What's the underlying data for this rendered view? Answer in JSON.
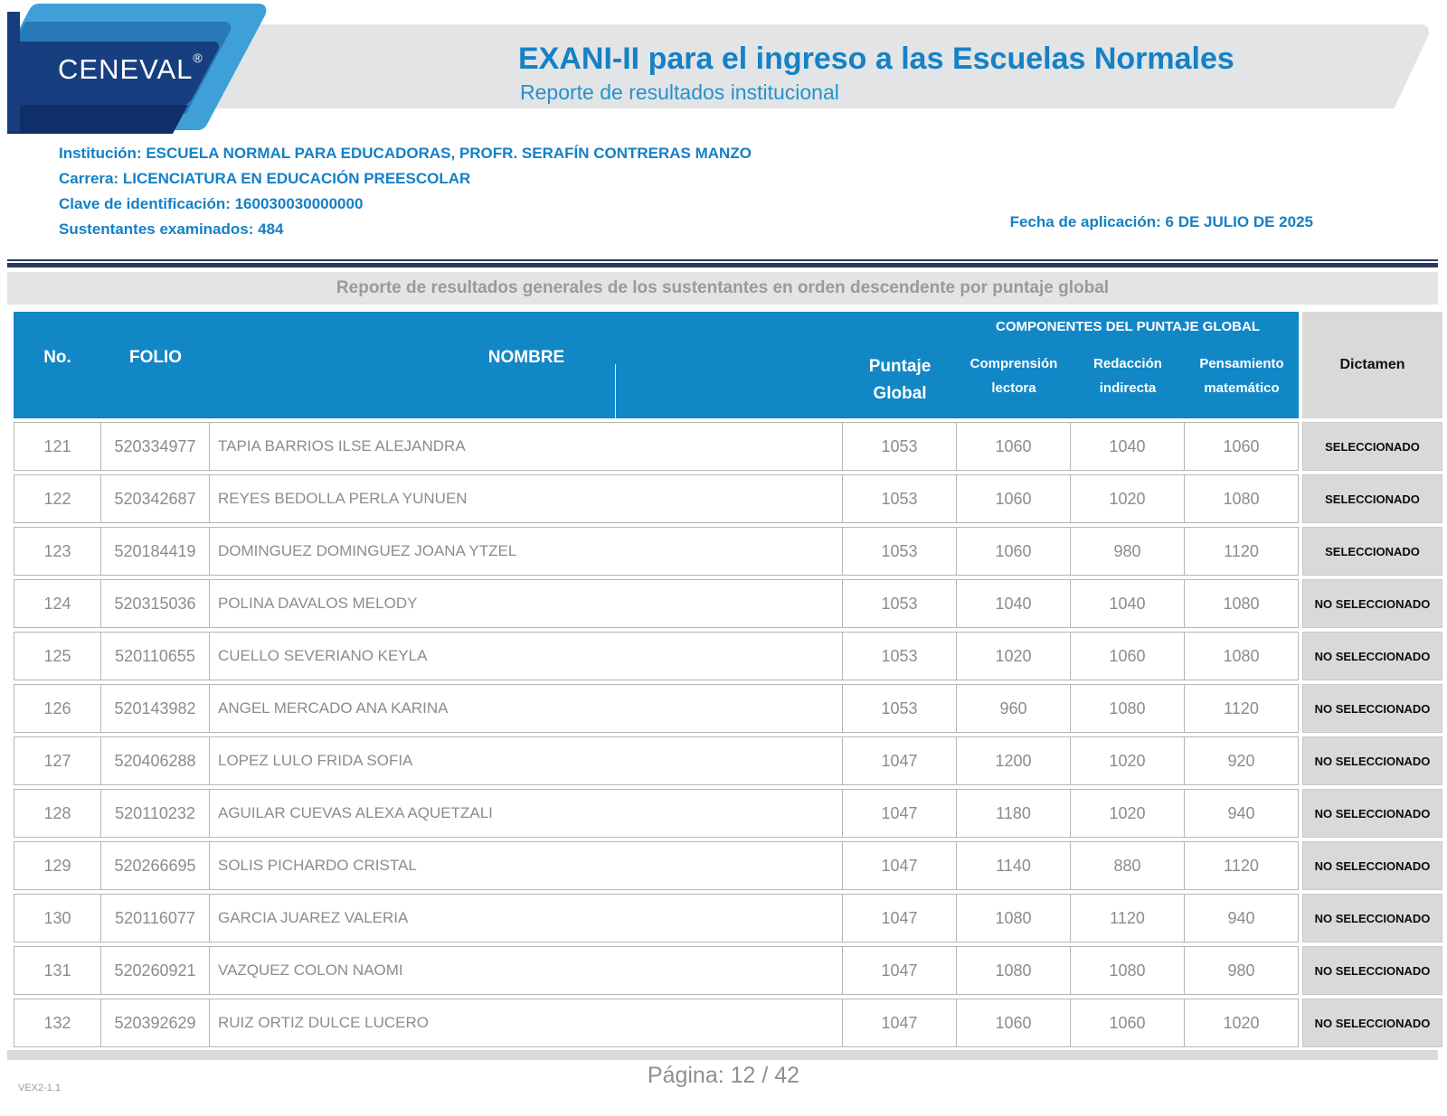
{
  "colors": {
    "header_blue": "#1287c6",
    "title_blue": "#1581c6",
    "navy_rule": "#2c3a60",
    "dictamen_bg": "#d9d9d9",
    "logo_light_blue": "#3fa0d8",
    "logo_mid_blue": "#2779b8",
    "logo_navy": "#173f80"
  },
  "header": {
    "logo_text": "CENEVAL",
    "logo_reg": "®",
    "title": "EXANI-II para el ingreso a las Escuelas Normales",
    "subtitle": "Reporte de resultados institucional"
  },
  "info": {
    "institucion": "Institución: ESCUELA NORMAL PARA EDUCADORAS, PROFR. SERAFÍN CONTRERAS MANZO",
    "carrera": "Carrera: LICENCIATURA EN EDUCACIÓN PREESCOLAR",
    "clave": "Clave de identificación:  160030030000000",
    "sustentantes": "Sustentantes examinados:  484",
    "fecha": "Fecha de aplicación: 6 DE JULIO DE 2025"
  },
  "section_title": "Reporte de resultados generales de los sustentantes en orden descendente por puntaje global",
  "table": {
    "headers": {
      "no": "No.",
      "folio": "FOLIO",
      "nombre": "NOMBRE",
      "puntaje_global": "Puntaje\nGlobal",
      "componentes_group": "COMPONENTES DEL PUNTAJE GLOBAL",
      "comprension": "Comprensión\nlectora",
      "redaccion": "Redacción\nindirecta",
      "pensamiento": "Pensamiento\nmatemático",
      "dictamen": "Dictamen"
    },
    "rows": [
      {
        "no": "121",
        "folio": "520334977",
        "nombre": "TAPIA BARRIOS ILSE ALEJANDRA",
        "pg": "1053",
        "cl": "1060",
        "ri": "1040",
        "pm": "1060",
        "dictamen": "SELECCIONADO"
      },
      {
        "no": "122",
        "folio": "520342687",
        "nombre": "REYES BEDOLLA PERLA YUNUEN",
        "pg": "1053",
        "cl": "1060",
        "ri": "1020",
        "pm": "1080",
        "dictamen": "SELECCIONADO"
      },
      {
        "no": "123",
        "folio": "520184419",
        "nombre": "DOMINGUEZ DOMINGUEZ JOANA YTZEL",
        "pg": "1053",
        "cl": "1060",
        "ri": "980",
        "pm": "1120",
        "dictamen": "SELECCIONADO"
      },
      {
        "no": "124",
        "folio": "520315036",
        "nombre": "POLINA DAVALOS MELODY",
        "pg": "1053",
        "cl": "1040",
        "ri": "1040",
        "pm": "1080",
        "dictamen": "NO SELECCIONADO"
      },
      {
        "no": "125",
        "folio": "520110655",
        "nombre": "CUELLO SEVERIANO KEYLA",
        "pg": "1053",
        "cl": "1020",
        "ri": "1060",
        "pm": "1080",
        "dictamen": "NO SELECCIONADO"
      },
      {
        "no": "126",
        "folio": "520143982",
        "nombre": "ANGEL MERCADO ANA KARINA",
        "pg": "1053",
        "cl": "960",
        "ri": "1080",
        "pm": "1120",
        "dictamen": "NO SELECCIONADO"
      },
      {
        "no": "127",
        "folio": "520406288",
        "nombre": "LOPEZ LULO FRIDA SOFIA",
        "pg": "1047",
        "cl": "1200",
        "ri": "1020",
        "pm": "920",
        "dictamen": "NO SELECCIONADO"
      },
      {
        "no": "128",
        "folio": "520110232",
        "nombre": "AGUILAR CUEVAS ALEXA AQUETZALI",
        "pg": "1047",
        "cl": "1180",
        "ri": "1020",
        "pm": "940",
        "dictamen": "NO SELECCIONADO"
      },
      {
        "no": "129",
        "folio": "520266695",
        "nombre": "SOLIS PICHARDO CRISTAL",
        "pg": "1047",
        "cl": "1140",
        "ri": "880",
        "pm": "1120",
        "dictamen": "NO SELECCIONADO"
      },
      {
        "no": "130",
        "folio": "520116077",
        "nombre": "GARCIA JUAREZ VALERIA",
        "pg": "1047",
        "cl": "1080",
        "ri": "1120",
        "pm": "940",
        "dictamen": "NO SELECCIONADO"
      },
      {
        "no": "131",
        "folio": "520260921",
        "nombre": "VAZQUEZ COLON NAOMI",
        "pg": "1047",
        "cl": "1080",
        "ri": "1080",
        "pm": "980",
        "dictamen": "NO SELECCIONADO"
      },
      {
        "no": "132",
        "folio": "520392629",
        "nombre": "RUIZ ORTIZ DULCE LUCERO",
        "pg": "1047",
        "cl": "1060",
        "ri": "1060",
        "pm": "1020",
        "dictamen": "NO SELECCIONADO"
      }
    ]
  },
  "footer": {
    "version": "VEX2-1.1",
    "page": "Página: 12 / 42"
  }
}
